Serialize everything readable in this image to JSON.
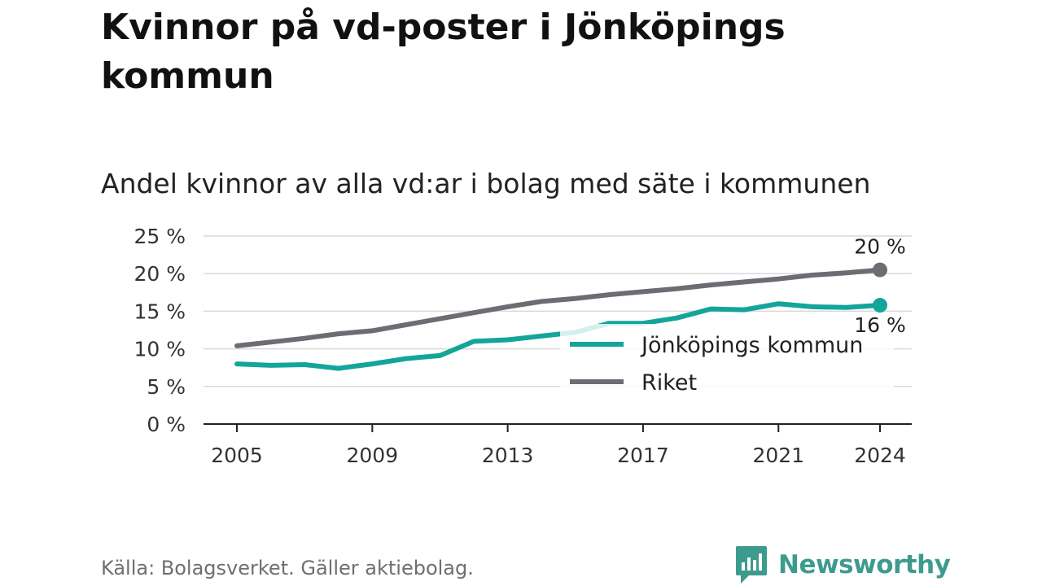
{
  "header": {
    "title": "Kvinnor på vd-poster i Jönköpings kommun",
    "subtitle": "Andel kvinnor av alla vd:ar i bolag med säte i kommunen"
  },
  "footer": {
    "source": "Källa: Bolagsverket. Gäller aktiebolag.",
    "brand": "Newsworthy",
    "brand_icon": "newsworthy-logo-icon",
    "brand_color": "#3d9b8e"
  },
  "chart_data": {
    "type": "line",
    "title": "Kvinnor på vd-poster i Jönköpings kommun",
    "subtitle": "Andel kvinnor av alla vd:ar i bolag med säte i kommunen",
    "xlabel": "",
    "ylabel": "",
    "x": [
      2005,
      2006,
      2007,
      2008,
      2009,
      2010,
      2011,
      2012,
      2013,
      2014,
      2015,
      2016,
      2017,
      2018,
      2019,
      2020,
      2021,
      2022,
      2023,
      2024
    ],
    "xticks": [
      2005,
      2009,
      2013,
      2017,
      2021,
      2024
    ],
    "xtick_labels": [
      "2005",
      "2009",
      "2013",
      "2017",
      "2021",
      "2024"
    ],
    "ylim": [
      0,
      25
    ],
    "yticks": [
      0,
      5,
      10,
      15,
      20,
      25
    ],
    "ytick_labels": [
      "0 %",
      "5 %",
      "10 %",
      "15 %",
      "20 %",
      "25 %"
    ],
    "grid": true,
    "legend_position": "bottom-right",
    "series": [
      {
        "name": "Jönköpings kommun",
        "color": "#14a59a",
        "values": [
          8.0,
          7.8,
          7.9,
          7.4,
          8.0,
          8.7,
          9.1,
          11.0,
          11.2,
          11.7,
          12.2,
          13.4,
          13.4,
          14.1,
          15.3,
          15.2,
          16.0,
          15.6,
          15.5,
          15.8
        ],
        "end_label": "16 %"
      },
      {
        "name": "Riket",
        "color": "#6d6c73",
        "values": [
          10.4,
          10.9,
          11.4,
          12.0,
          12.4,
          13.2,
          14.0,
          14.8,
          15.6,
          16.3,
          16.7,
          17.2,
          17.6,
          18.0,
          18.5,
          18.9,
          19.3,
          19.8,
          20.1,
          20.5
        ],
        "end_label": "20 %"
      }
    ]
  }
}
